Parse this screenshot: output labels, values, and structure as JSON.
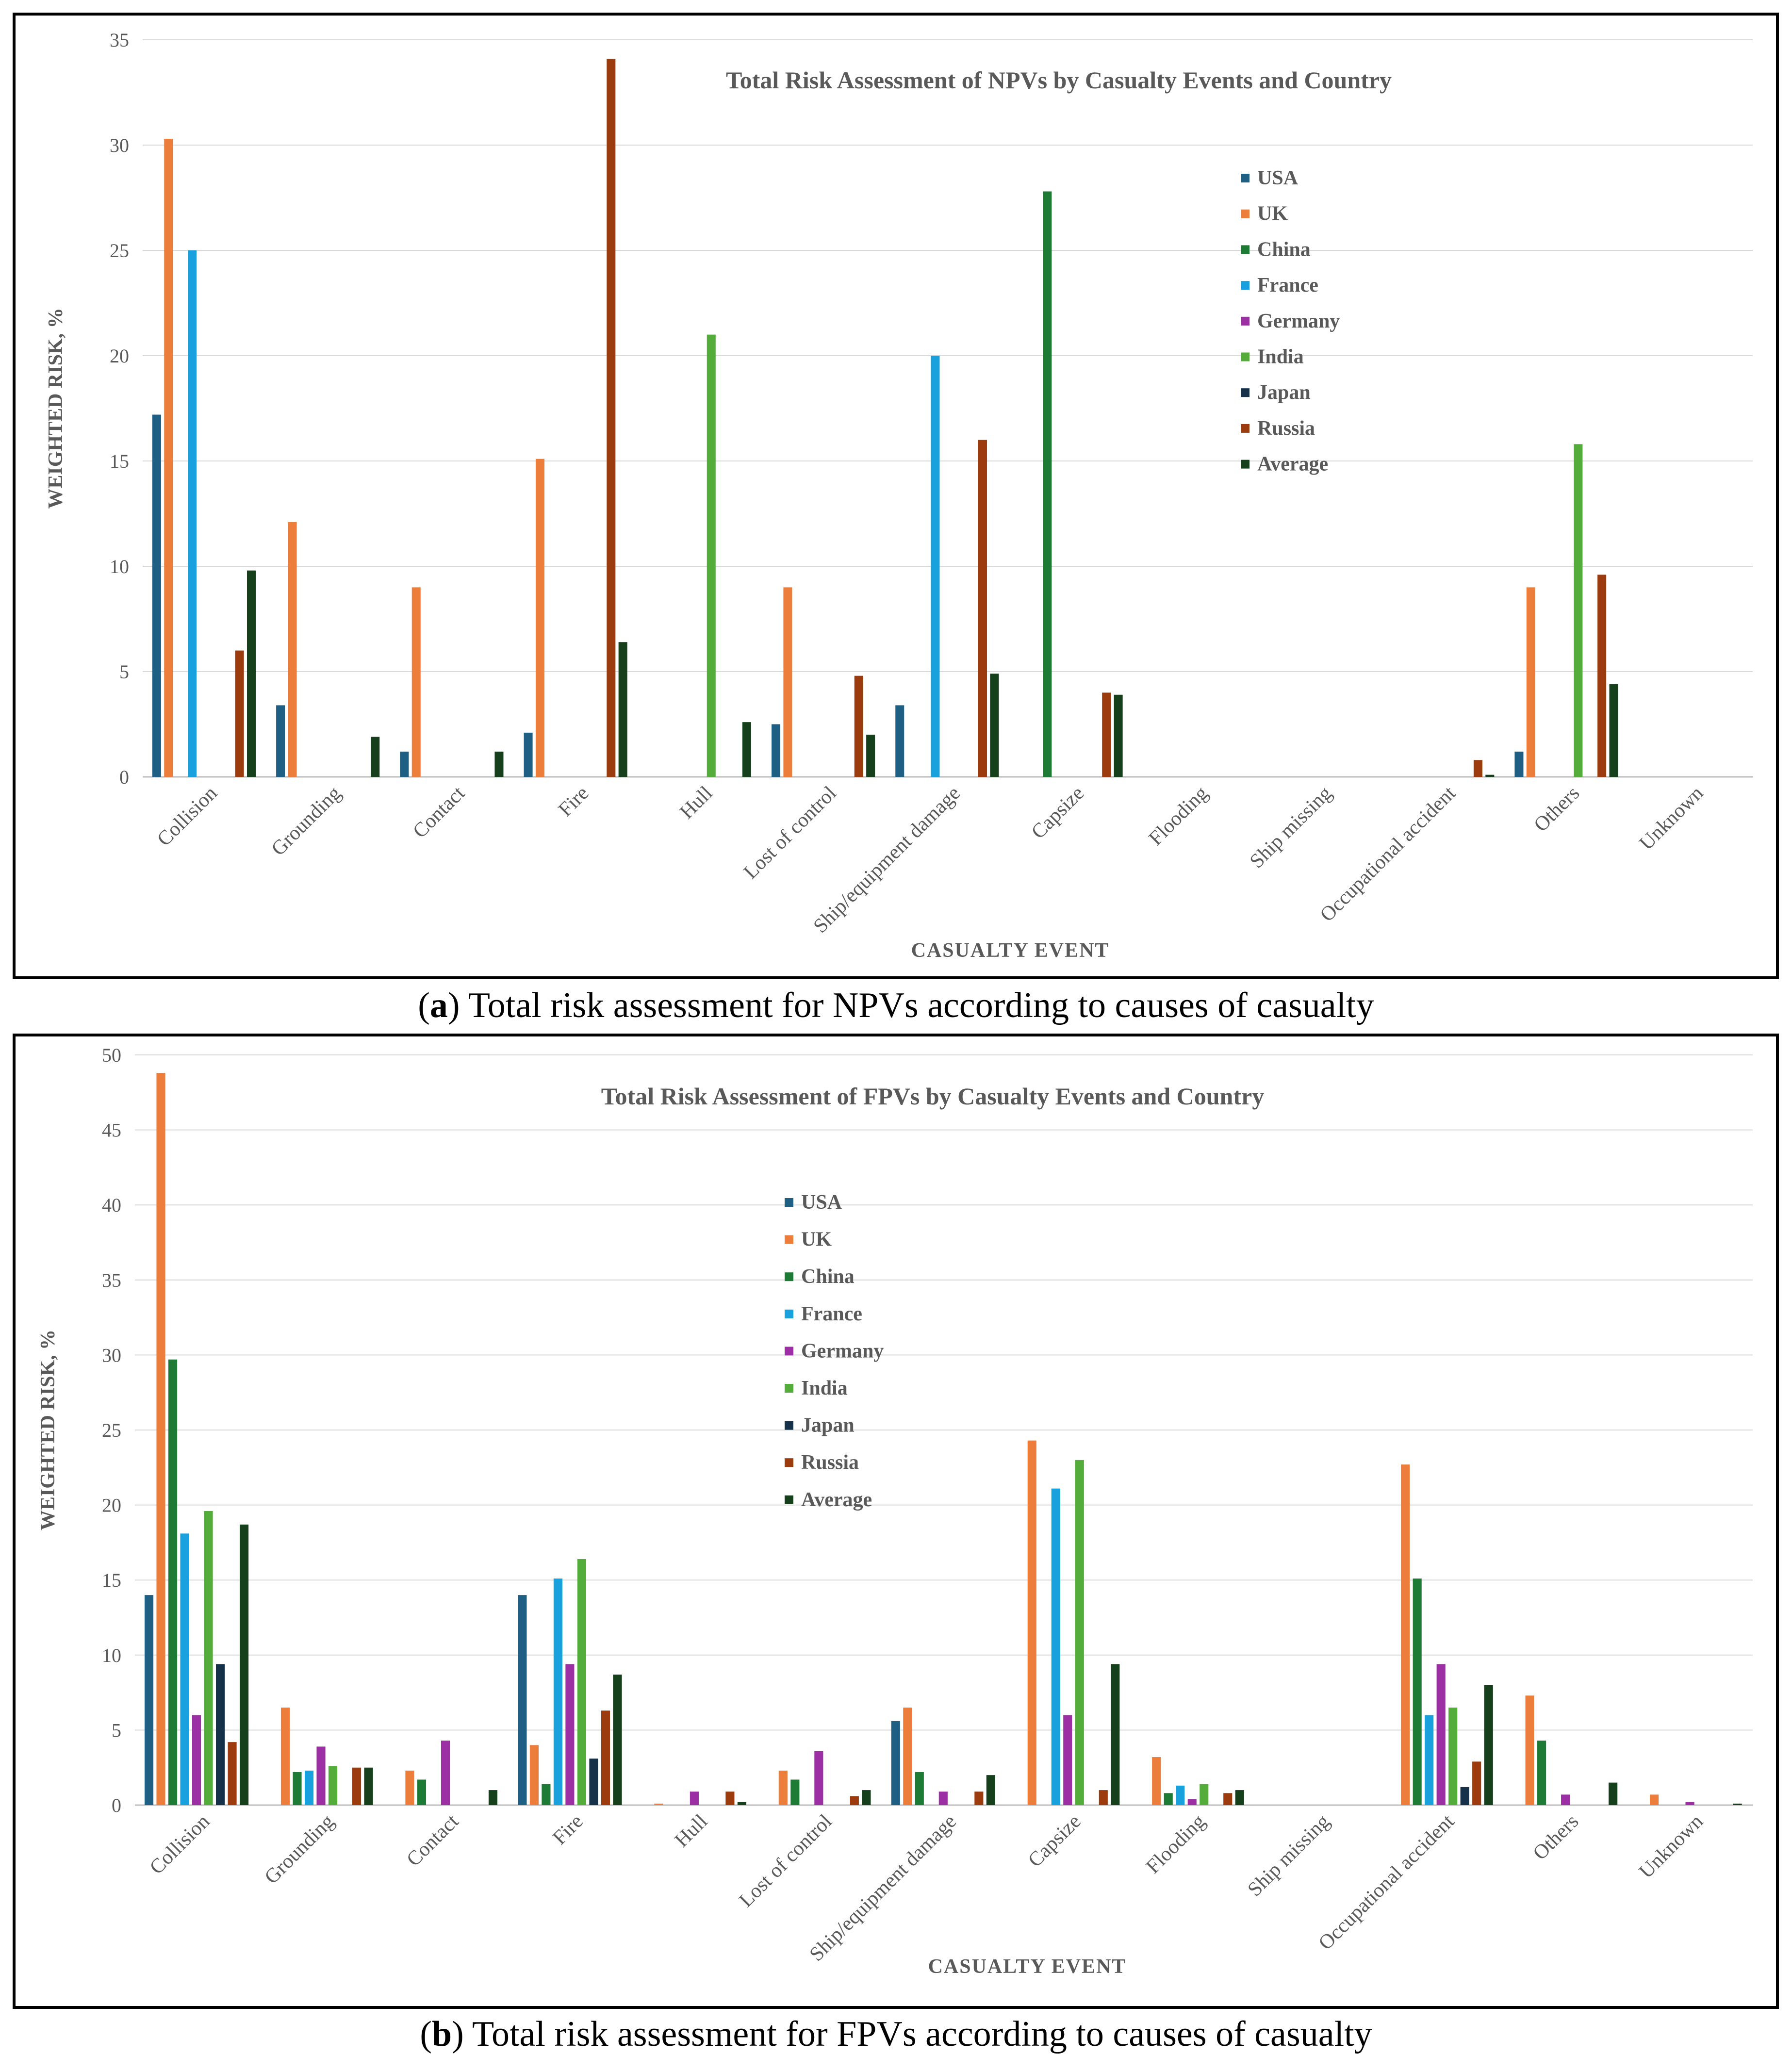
{
  "colors": {
    "USA": "#1f5f84",
    "UK": "#ed7d3a",
    "China": "#1e7b36",
    "France": "#18a1dc",
    "Germany": "#9c2fa3",
    "India": "#54ad3b",
    "Japan": "#15324a",
    "Russia": "#9c3c0e",
    "Average": "#163f1b"
  },
  "captions": {
    "a": {
      "letter": "a",
      "open": "(",
      "close": ")",
      "text": " Total risk assessment for NPVs according to causes of casualty"
    },
    "b": {
      "letter": "b",
      "open": "(",
      "close": ")",
      "text": " Total risk assessment for FPVs according to causes of casualty"
    }
  },
  "chart_data": [
    {
      "id": "npv",
      "type": "bar",
      "title": "Total Risk Assessment of NPVs by Casualty Events and Country",
      "xlabel": "CASUALTY EVENT",
      "ylabel": "WEIGHTED RISK, %",
      "ylim": [
        0,
        35
      ],
      "yticks": [
        0,
        5,
        10,
        15,
        20,
        25,
        30,
        35
      ],
      "grid": true,
      "legend_position": "top-right",
      "categories": [
        "Collision",
        "Grounding",
        "Contact",
        "Fire",
        "Hull",
        "Lost of control",
        "Ship/equipment damage",
        "Capsize",
        "Flooding",
        "Ship missing",
        "Occupational accident",
        "Others",
        "Unknown"
      ],
      "series": [
        {
          "name": "USA",
          "values": [
            17.2,
            3.4,
            1.2,
            2.1,
            0,
            2.5,
            3.4,
            0,
            0,
            0,
            0,
            1.2,
            0
          ]
        },
        {
          "name": "UK",
          "values": [
            30.3,
            12.1,
            9.0,
            15.1,
            0,
            9.0,
            0,
            0,
            0,
            0,
            0,
            9.0,
            0
          ]
        },
        {
          "name": "China",
          "values": [
            0,
            0,
            0,
            0,
            0,
            0,
            0,
            27.8,
            0,
            0,
            0,
            0,
            0
          ]
        },
        {
          "name": "France",
          "values": [
            25.0,
            0,
            0,
            0,
            0,
            0,
            20.0,
            0,
            0,
            0,
            0,
            0,
            0
          ]
        },
        {
          "name": "Germany",
          "values": [
            0,
            0,
            0,
            0,
            0,
            0,
            0,
            0,
            0,
            0,
            0,
            0,
            0
          ]
        },
        {
          "name": "India",
          "values": [
            0,
            0,
            0,
            0,
            21.0,
            0,
            0,
            0,
            0,
            0,
            0,
            15.8,
            0
          ]
        },
        {
          "name": "Japan",
          "values": [
            0,
            0,
            0,
            0,
            0,
            0,
            0,
            0,
            0,
            0,
            0,
            0,
            0
          ]
        },
        {
          "name": "Russia",
          "values": [
            6.0,
            0,
            0,
            34.1,
            0,
            4.8,
            16.0,
            4.0,
            0,
            0,
            0.8,
            9.6,
            0
          ]
        },
        {
          "name": "Average",
          "values": [
            9.8,
            1.9,
            1.2,
            6.4,
            2.6,
            2.0,
            4.9,
            3.9,
            0,
            0,
            0.1,
            4.4,
            0
          ]
        }
      ]
    },
    {
      "id": "fpv",
      "type": "bar",
      "title": "Total Risk Assessment of FPVs by Casualty Events and Country",
      "xlabel": "CASUALTY EVENT",
      "ylabel": "WEIGHTED RISK, %",
      "ylim": [
        0,
        50
      ],
      "yticks": [
        0,
        5,
        10,
        15,
        20,
        25,
        30,
        35,
        40,
        45,
        50
      ],
      "grid": true,
      "legend_position": "top-center",
      "categories": [
        "Collision",
        "Grounding",
        "Contact",
        "Fire",
        "Hull",
        "Lost of control",
        "Ship/equipment damage",
        "Capsize",
        "Flooding",
        "Ship missing",
        "Occupational accident",
        "Others",
        "Unknown"
      ],
      "series": [
        {
          "name": "USA",
          "values": [
            14.0,
            0,
            0,
            14.0,
            0,
            0,
            5.6,
            0,
            0,
            0,
            0,
            0,
            0
          ]
        },
        {
          "name": "UK",
          "values": [
            48.8,
            6.5,
            2.3,
            4.0,
            0.1,
            2.3,
            6.5,
            24.3,
            3.2,
            0,
            22.7,
            7.3,
            0.7
          ]
        },
        {
          "name": "China",
          "values": [
            29.7,
            2.2,
            1.7,
            1.4,
            0,
            1.7,
            2.2,
            0,
            0.8,
            0,
            15.1,
            4.3,
            0
          ]
        },
        {
          "name": "France",
          "values": [
            18.1,
            2.3,
            0,
            15.1,
            0,
            0,
            0,
            21.1,
            1.3,
            0,
            6.0,
            0,
            0
          ]
        },
        {
          "name": "Germany",
          "values": [
            6.0,
            3.9,
            4.3,
            9.4,
            0.9,
            3.6,
            0.9,
            6.0,
            0.4,
            0,
            9.4,
            0.7,
            0.2
          ]
        },
        {
          "name": "India",
          "values": [
            19.6,
            2.6,
            0,
            16.4,
            0,
            0,
            0,
            23.0,
            1.4,
            0,
            6.5,
            0,
            0
          ]
        },
        {
          "name": "Japan",
          "values": [
            9.4,
            0,
            0,
            3.1,
            0,
            0,
            0,
            0,
            0,
            0,
            1.2,
            0,
            0
          ]
        },
        {
          "name": "Russia",
          "values": [
            4.2,
            2.5,
            0,
            6.3,
            0.9,
            0.6,
            0.9,
            1.0,
            0.8,
            0,
            2.9,
            0,
            0
          ]
        },
        {
          "name": "Average",
          "values": [
            18.7,
            2.5,
            1.0,
            8.7,
            0.2,
            1.0,
            2.0,
            9.4,
            1.0,
            0,
            8.0,
            1.5,
            0.1
          ]
        }
      ]
    }
  ]
}
